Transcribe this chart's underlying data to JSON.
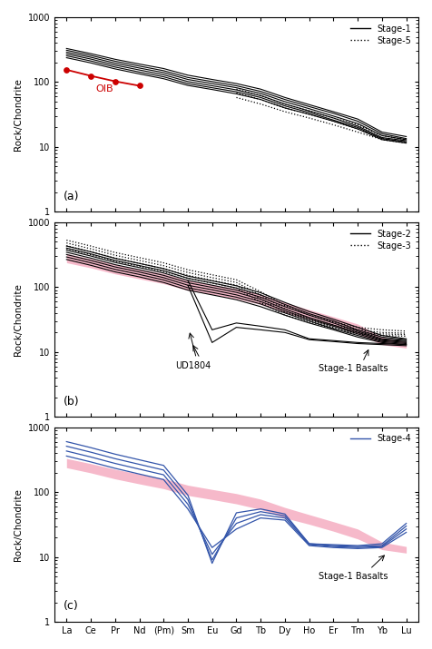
{
  "elements": [
    "La",
    "Ce",
    "Pr",
    "Nd",
    "(Pm)",
    "Sm",
    "Eu",
    "Gd",
    "Tb",
    "Dy",
    "Ho",
    "Er",
    "Tm",
    "Yb",
    "Lu"
  ],
  "x_indices": [
    0,
    1,
    2,
    3,
    4,
    5,
    6,
    7,
    8,
    9,
    10,
    11,
    12,
    13,
    14
  ],
  "stage1_lines": [
    [
      330,
      275,
      225,
      190,
      162,
      128,
      110,
      95,
      78,
      58,
      45,
      35,
      27,
      17,
      14.5
    ],
    [
      310,
      258,
      210,
      177,
      150,
      118,
      102,
      88,
      72,
      54,
      42,
      33,
      25,
      16,
      13.5
    ],
    [
      290,
      242,
      196,
      165,
      140,
      110,
      95,
      82,
      67,
      50,
      39,
      30,
      23,
      15,
      13
    ],
    [
      272,
      227,
      183,
      154,
      130,
      102,
      88,
      76,
      62,
      46,
      36,
      28,
      21,
      14,
      12.5
    ],
    [
      255,
      212,
      171,
      143,
      121,
      95,
      82,
      71,
      58,
      43,
      34,
      26,
      20,
      13.5,
      12
    ],
    [
      238,
      198,
      160,
      134,
      113,
      89,
      77,
      66,
      54,
      40,
      32,
      25,
      19,
      13,
      11.5
    ]
  ],
  "stage5_lines": [
    [
      null,
      null,
      null,
      null,
      null,
      null,
      null,
      78,
      62,
      46,
      36,
      28,
      22,
      15,
      13
    ],
    [
      null,
      null,
      null,
      null,
      null,
      null,
      null,
      68,
      54,
      40,
      32,
      25,
      19,
      13.5,
      12
    ],
    [
      null,
      null,
      null,
      null,
      null,
      null,
      null,
      58,
      46,
      35,
      28,
      22,
      17,
      13,
      11.5
    ]
  ],
  "oib_line": [
    155,
    125,
    103,
    88,
    null,
    null,
    null,
    null,
    null,
    null,
    null,
    null,
    null,
    null,
    null
  ],
  "stage1_band_upper": [
    330,
    275,
    225,
    190,
    162,
    128,
    110,
    95,
    78,
    58,
    45,
    35,
    27,
    17,
    14.5
  ],
  "stage1_band_lower": [
    238,
    198,
    160,
    134,
    113,
    89,
    77,
    66,
    54,
    40,
    32,
    25,
    19,
    13,
    11.5
  ],
  "stage2_lines": [
    [
      430,
      350,
      278,
      232,
      193,
      148,
      125,
      105,
      82,
      58,
      42,
      32,
      24,
      18,
      16
    ],
    [
      400,
      325,
      258,
      215,
      179,
      137,
      116,
      97,
      76,
      54,
      39,
      30,
      22,
      17,
      15.5
    ],
    [
      372,
      302,
      240,
      200,
      165,
      127,
      107,
      90,
      70,
      50,
      37,
      28,
      21,
      16,
      15
    ],
    [
      345,
      280,
      222,
      185,
      152,
      117,
      99,
      83,
      65,
      46,
      34,
      26,
      20,
      15.5,
      14.5
    ],
    [
      318,
      258,
      205,
      171,
      140,
      107,
      91,
      76,
      60,
      43,
      32,
      25,
      19,
      15,
      14
    ],
    [
      292,
      237,
      188,
      157,
      129,
      98,
      83,
      70,
      55,
      40,
      30,
      23,
      18,
      14.5,
      13.5
    ],
    [
      267,
      217,
      172,
      144,
      118,
      90,
      76,
      64,
      50,
      37,
      28,
      22,
      17,
      14,
      13
    ]
  ],
  "stage3_lines": [
    [
      530,
      430,
      342,
      285,
      237,
      185,
      155,
      130,
      85,
      52,
      37,
      29,
      24,
      22,
      21
    ],
    [
      480,
      390,
      310,
      258,
      214,
      168,
      140,
      118,
      75,
      46,
      33,
      26,
      22,
      20,
      19.5
    ],
    [
      435,
      352,
      280,
      233,
      193,
      152,
      127,
      107,
      66,
      41,
      31,
      24,
      20,
      19,
      18.5
    ],
    [
      392,
      317,
      252,
      210,
      174,
      137,
      115,
      97,
      58,
      37,
      29,
      23,
      19,
      18,
      17.5
    ]
  ],
  "ud1804_lines": [
    [
      null,
      null,
      null,
      null,
      null,
      127,
      22,
      28,
      25,
      22,
      16,
      15,
      14,
      13.5,
      13
    ],
    [
      null,
      null,
      null,
      null,
      null,
      107,
      14,
      24,
      22,
      20,
      15.5,
      14.5,
      13.5,
      13,
      12.5
    ]
  ],
  "stage4_lines": [
    [
      600,
      485,
      385,
      315,
      258,
      90,
      8,
      48,
      55,
      46,
      16,
      15.5,
      15,
      16,
      33
    ],
    [
      510,
      413,
      328,
      268,
      219,
      77,
      9,
      40,
      50,
      43,
      16,
      15,
      14.5,
      15,
      30
    ],
    [
      430,
      348,
      277,
      226,
      185,
      65,
      11,
      33,
      45,
      40,
      15.5,
      14.5,
      14,
      14.5,
      27
    ],
    [
      360,
      292,
      233,
      190,
      156,
      55,
      14,
      27,
      40,
      37,
      15,
      14,
      13.5,
      14,
      24
    ]
  ],
  "stage1_color": "#000000",
  "stage5_color": "#000000",
  "stage2_color": "#000000",
  "stage3_color": "#000000",
  "stage4_color": "#3355aa",
  "oib_color": "#cc0000",
  "pink_band_color": "#f080a0",
  "background_color": "#ffffff"
}
